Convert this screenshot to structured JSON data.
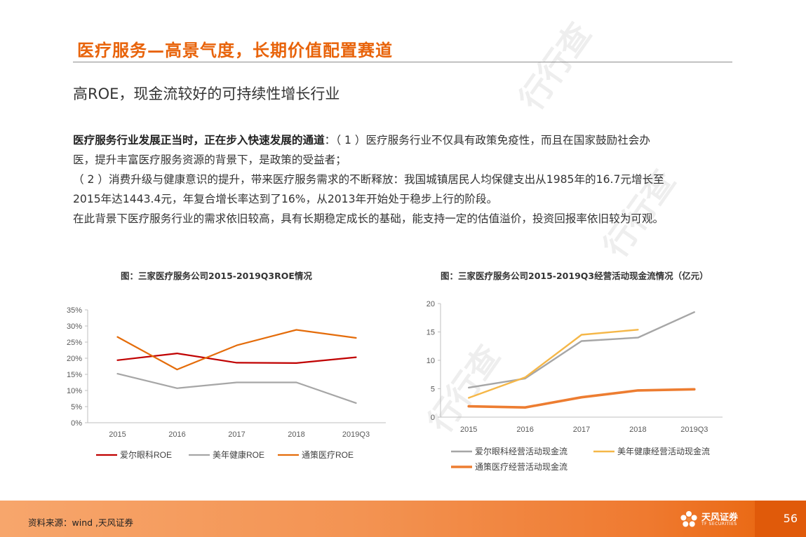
{
  "header": {
    "title": "医疗服务—高景气度，长期价值配置赛道"
  },
  "subtitle": "高ROE，现金流较好的可持续性增长行业",
  "body": {
    "p1_bold": "医疗服务行业发展正当时，正在步入快速发展的通道",
    "p1_rest": "：（ 1 ）医疗服务行业不仅具有政策免疫性，而且在国家鼓励社会办",
    "p1_line2": "医，提升丰富医疗服务资源的背景下，是政策的受益者；",
    "p2_line1": "（ 2 ）消费升级与健康意识的提升，带来医疗服务需求的不断释放：我国城镇居民人均保健支出从1985年的16.7元增长至",
    "p2_line2": "2015年达1443.4元，年复合增长率达到了16%，从2013年开始处于稳步上行的阶段。",
    "p3": "在此背景下医疗服务行业的需求依旧较高，具有长期稳定成长的基础，能支持一定的估值溢价，投资回报率依旧较为可观。"
  },
  "footer": {
    "source": "资料来源：wind ,天风证券",
    "logo_text": "天风证券",
    "logo_sub": "TF SECURITIES",
    "page": "56"
  },
  "watermark": "行行查",
  "chart_data": [
    {
      "type": "line",
      "title": "图：三家医疗服务公司2015-2019Q3ROE情况",
      "categories": [
        "2015",
        "2016",
        "2017",
        "2018",
        "2019Q3"
      ],
      "ylim": [
        0,
        35
      ],
      "yticks": [
        "0%",
        "5%",
        "10%",
        "15%",
        "20%",
        "25%",
        "30%",
        "35%"
      ],
      "grid": false,
      "legend": "bottom",
      "series": [
        {
          "name": "爱尔眼科ROE",
          "color": "#c00000",
          "values": [
            19.4,
            21.5,
            18.6,
            18.5,
            20.3
          ]
        },
        {
          "name": "美年健康ROE",
          "color": "#a6a6a6",
          "values": [
            15.2,
            10.7,
            12.5,
            12.5,
            6.1
          ]
        },
        {
          "name": "通策医疗ROE",
          "color": "#e46c0a",
          "values": [
            26.6,
            16.5,
            24.0,
            28.8,
            26.3
          ]
        }
      ]
    },
    {
      "type": "line",
      "title": "图：三家医疗服务公司2015-2019Q3经营活动现金流情况（亿元）",
      "categories": [
        "2015",
        "2016",
        "2017",
        "2018",
        "2019Q3"
      ],
      "ylim": [
        0,
        20
      ],
      "yticks": [
        "0",
        "5",
        "10",
        "15",
        "20"
      ],
      "grid": false,
      "legend": "bottom",
      "series": [
        {
          "name": "爱尔眼科经营活动现金流",
          "color": "#a6a6a6",
          "values": [
            5.2,
            6.8,
            13.4,
            14.0,
            18.5
          ]
        },
        {
          "name": "美年健康经营活动现金流",
          "color": "#f5b748",
          "values": [
            3.4,
            7.0,
            14.5,
            15.4,
            null
          ]
        },
        {
          "name": "通策医疗经营活动现金流",
          "color": "#ed7d31",
          "values": [
            1.9,
            1.7,
            3.5,
            4.7,
            4.9
          ]
        }
      ]
    }
  ]
}
